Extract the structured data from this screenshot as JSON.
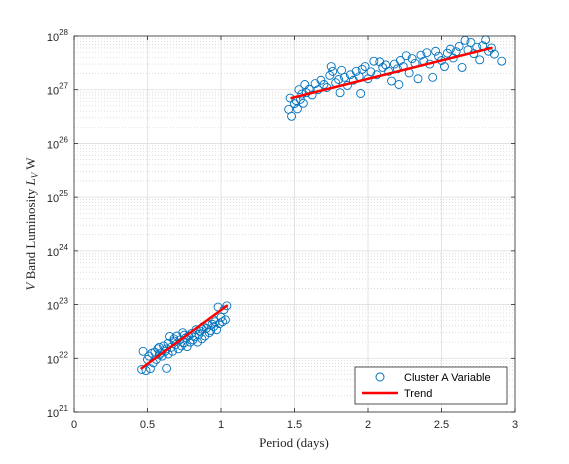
{
  "chart_data": {
    "type": "scatter",
    "xlabel": "Period (days)",
    "ylabel_parts": {
      "v": "V",
      "band": " Band Luminosity ",
      "l": "L",
      "sub": "V",
      "unit": " W"
    },
    "xlim": [
      0,
      3
    ],
    "ylim": [
      1e+21,
      1e+28
    ],
    "y_scale": "log",
    "x_ticks": [
      0,
      0.5,
      1,
      1.5,
      2,
      2.5,
      3
    ],
    "x_tick_labels": [
      "0",
      "0.5",
      "1",
      "1.5",
      "2",
      "2.5",
      "3"
    ],
    "y_ticks_exp": [
      21,
      22,
      23,
      24,
      25,
      26,
      27,
      28
    ],
    "y_tick_base": "10",
    "grid": true,
    "minor_grid": true,
    "legend_position": "bottom-right",
    "series": [
      {
        "name": "Cluster A Variable",
        "kind": "scatter",
        "marker": "open-circle",
        "color": "#0072BD",
        "points": [
          [
            0.46,
            6.2e+21
          ],
          [
            0.47,
            1.35e+22
          ],
          [
            0.49,
            5.9e+21
          ],
          [
            0.5,
            9.5e+21
          ],
          [
            0.51,
            1.1e+22
          ],
          [
            0.52,
            6.4e+21
          ],
          [
            0.53,
            1.25e+22
          ],
          [
            0.54,
            8.2e+21
          ],
          [
            0.55,
            1.3e+22
          ],
          [
            0.56,
            9.5e+21
          ],
          [
            0.57,
            1.5e+22
          ],
          [
            0.58,
            1.15e+22
          ],
          [
            0.59,
            1.25e+22
          ],
          [
            0.6,
            1.1e+22
          ],
          [
            0.61,
            1.7e+22
          ],
          [
            0.62,
            1.35e+22
          ],
          [
            0.63,
            1.5e+22
          ],
          [
            0.63,
            6.5e+21
          ],
          [
            0.64,
            1.9e+22
          ],
          [
            0.65,
            2.55e+22
          ],
          [
            0.66,
            1.6e+22
          ],
          [
            0.67,
            1.35e+22
          ],
          [
            0.68,
            2.1e+22
          ],
          [
            0.69,
            1.8e+22
          ],
          [
            0.7,
            2.6e+22
          ],
          [
            0.71,
            1.5e+22
          ],
          [
            0.72,
            2.2e+22
          ],
          [
            0.73,
            1.7e+22
          ],
          [
            0.74,
            3e+22
          ],
          [
            0.75,
            1.95e+22
          ],
          [
            0.76,
            2.4e+22
          ],
          [
            0.77,
            1.65e+22
          ],
          [
            0.78,
            2.6e+22
          ],
          [
            0.79,
            2e+22
          ],
          [
            0.8,
            2.9e+22
          ],
          [
            0.81,
            2.2e+22
          ],
          [
            0.82,
            2.5e+22
          ],
          [
            0.83,
            3.4e+22
          ],
          [
            0.84,
            2e+22
          ],
          [
            0.85,
            2.8e+22
          ],
          [
            0.86,
            3.2e+22
          ],
          [
            0.87,
            2.3e+22
          ],
          [
            0.88,
            3.9e+22
          ],
          [
            0.89,
            2.6e+22
          ],
          [
            0.9,
            3.6e+22
          ],
          [
            0.91,
            4.2e+22
          ],
          [
            0.92,
            3e+22
          ],
          [
            0.93,
            3.3e+22
          ],
          [
            0.94,
            4.3e+22
          ],
          [
            0.95,
            3.9e+22
          ],
          [
            0.96,
            4.8e+22
          ],
          [
            0.97,
            3.4e+22
          ],
          [
            0.98,
            9e+22
          ],
          [
            0.99,
            4.4e+22
          ],
          [
            1.0,
            5.8e+22
          ],
          [
            1.01,
            4.8e+22
          ],
          [
            1.02,
            8e+22
          ],
          [
            1.03,
            5.2e+22
          ],
          [
            1.04,
            9.5e+22
          ],
          [
            0.58,
            1.6e+22
          ],
          [
            0.68,
            2.3e+22
          ],
          [
            0.75,
            2.7e+22
          ],
          [
            0.87,
            3.5e+22
          ],
          [
            0.95,
            5.2e+22
          ],
          [
            0.64,
            1.2e+22
          ]
        ]
      },
      {
        "name": "Cluster A Variable",
        "kind": "scatter",
        "marker": "open-circle",
        "color": "#0072BD",
        "points": [
          [
            1.46,
            4.3e+26
          ],
          [
            1.47,
            7e+26
          ],
          [
            1.48,
            3.2e+26
          ],
          [
            1.5,
            5.5e+26
          ],
          [
            1.51,
            6.3e+26
          ],
          [
            1.52,
            4.4e+26
          ],
          [
            1.53,
            1e+27
          ],
          [
            1.54,
            6.6e+26
          ],
          [
            1.55,
            8.3e+26
          ],
          [
            1.56,
            5.6e+26
          ],
          [
            1.57,
            1.25e+27
          ],
          [
            1.58,
            8.8e+26
          ],
          [
            1.6,
            1.02e+27
          ],
          [
            1.62,
            8e+26
          ],
          [
            1.64,
            1.3e+27
          ],
          [
            1.66,
            1e+27
          ],
          [
            1.68,
            1.5e+27
          ],
          [
            1.7,
            1.25e+27
          ],
          [
            1.72,
            1.1e+27
          ],
          [
            1.74,
            1.85e+27
          ],
          [
            1.75,
            2.7e+27
          ],
          [
            1.76,
            2.2e+27
          ],
          [
            1.78,
            1.35e+27
          ],
          [
            1.8,
            1.55e+27
          ],
          [
            1.81,
            8.8e+26
          ],
          [
            1.82,
            2.3e+27
          ],
          [
            1.84,
            1.7e+27
          ],
          [
            1.86,
            1.2e+27
          ],
          [
            1.88,
            1.9e+27
          ],
          [
            1.9,
            1.5e+27
          ],
          [
            1.92,
            2.2e+27
          ],
          [
            1.94,
            1.75e+27
          ],
          [
            1.95,
            8.5e+26
          ],
          [
            1.96,
            2.4e+27
          ],
          [
            1.98,
            2.7e+27
          ],
          [
            2.0,
            1.6e+27
          ],
          [
            2.02,
            2.15e+27
          ],
          [
            2.04,
            3.4e+27
          ],
          [
            2.06,
            1.9e+27
          ],
          [
            2.08,
            3.3e+27
          ],
          [
            2.1,
            2.6e+27
          ],
          [
            2.12,
            2.9e+27
          ],
          [
            2.14,
            2.2e+27
          ],
          [
            2.16,
            1.45e+27
          ],
          [
            2.18,
            3e+27
          ],
          [
            2.2,
            2.45e+27
          ],
          [
            2.21,
            1.25e+27
          ],
          [
            2.22,
            3.5e+27
          ],
          [
            2.24,
            2.7e+27
          ],
          [
            2.26,
            4.3e+27
          ],
          [
            2.28,
            2.05e+27
          ],
          [
            2.3,
            3.8e+27
          ],
          [
            2.32,
            3.1e+27
          ],
          [
            2.34,
            1.6e+27
          ],
          [
            2.36,
            4.4e+27
          ],
          [
            2.38,
            3.4e+27
          ],
          [
            2.4,
            4.9e+27
          ],
          [
            2.42,
            3e+27
          ],
          [
            2.44,
            1.7e+27
          ],
          [
            2.46,
            5.2e+27
          ],
          [
            2.48,
            4.2e+27
          ],
          [
            2.5,
            3.5e+27
          ],
          [
            2.52,
            2.7e+27
          ],
          [
            2.54,
            4.8e+27
          ],
          [
            2.56,
            5.7e+27
          ],
          [
            2.58,
            3.9e+27
          ],
          [
            2.6,
            5.1e+27
          ],
          [
            2.62,
            6.4e+27
          ],
          [
            2.64,
            2.6e+27
          ],
          [
            2.66,
            8.3e+27
          ],
          [
            2.68,
            5.5e+27
          ],
          [
            2.7,
            7.6e+27
          ],
          [
            2.72,
            4.7e+27
          ],
          [
            2.74,
            6.2e+27
          ],
          [
            2.76,
            3.6e+27
          ],
          [
            2.78,
            6.6e+27
          ],
          [
            2.8,
            8.5e+27
          ],
          [
            2.82,
            5.2e+27
          ],
          [
            2.84,
            6e+27
          ],
          [
            2.86,
            4.6e+27
          ],
          [
            2.91,
            3.4e+27
          ]
        ]
      },
      {
        "name": "Trend",
        "kind": "line",
        "color": "#FF0000",
        "segments": [
          [
            [
              0.46,
              6.5e+21
            ],
            [
              1.04,
              9.5e+22
            ]
          ],
          [
            [
              1.48,
              7e+26
            ],
            [
              2.84,
              6e+27
            ]
          ]
        ]
      }
    ]
  }
}
